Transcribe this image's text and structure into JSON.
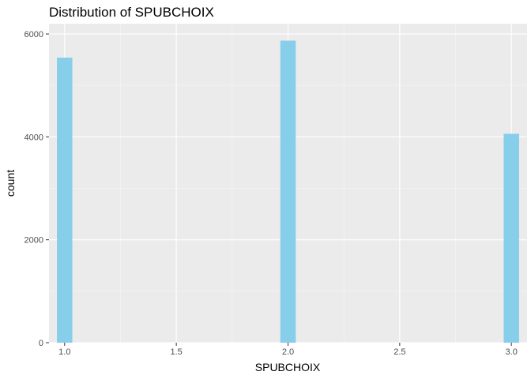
{
  "chart_data": {
    "type": "bar",
    "title": "Distribution of SPUBCHOIX",
    "xlabel": "SPUBCHOIX",
    "ylabel": "count",
    "x_ticks": [
      "1.0",
      "1.5",
      "2.0",
      "2.5",
      "3.0"
    ],
    "y_ticks": [
      "0",
      "2000",
      "4000",
      "6000"
    ],
    "xlim": [
      0.93,
      3.07
    ],
    "ylim": [
      0,
      6200
    ],
    "bars": [
      {
        "x": 1.0,
        "value": 5540
      },
      {
        "x": 2.0,
        "value": 5870
      },
      {
        "x": 3.0,
        "value": 4060
      }
    ],
    "bin_width": 0.069,
    "grid": true,
    "colors": {
      "bar": "#87CEEB",
      "panel": "#EBEBEB",
      "grid_major": "#FFFFFF",
      "grid_minor": "#F5F5F5"
    }
  }
}
